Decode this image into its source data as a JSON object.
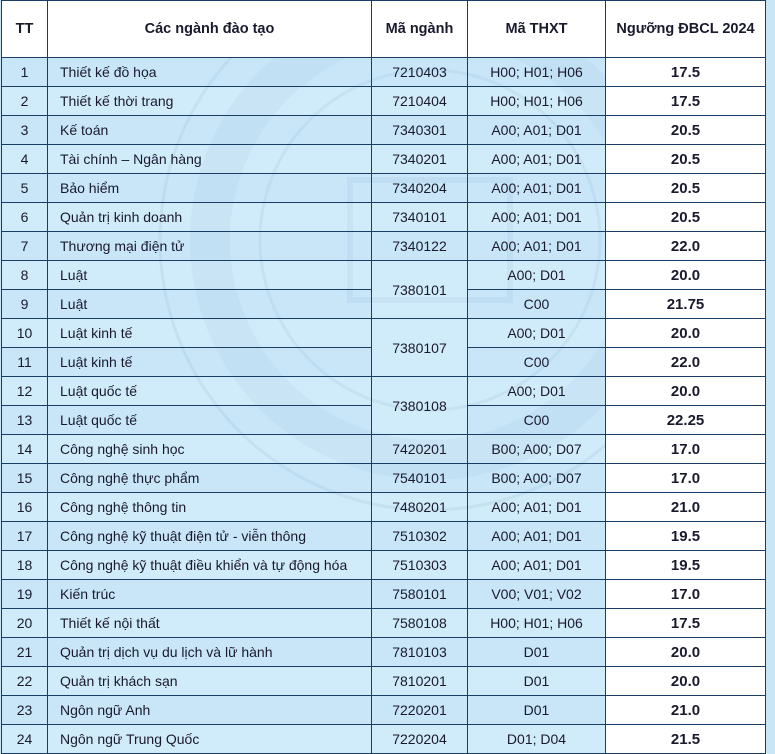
{
  "table": {
    "headers": [
      "TT",
      "Các ngành đào tạo",
      "Mã ngành",
      "Mã THXT",
      "Ngưỡng ĐBCL 2024"
    ],
    "rows": [
      {
        "tt": "1",
        "name": "Thiết kế đồ họa",
        "code": "7210403",
        "combo": "H00; H01; H06",
        "score": "17.5"
      },
      {
        "tt": "2",
        "name": "Thiết kế thời trang",
        "code": "7210404",
        "combo": "H00; H01; H06",
        "score": "17.5"
      },
      {
        "tt": "3",
        "name": "Kế toán",
        "code": "7340301",
        "combo": "A00; A01; D01",
        "score": "20.5"
      },
      {
        "tt": "4",
        "name": "Tài chính – Ngân hàng",
        "code": "7340201",
        "combo": "A00; A01; D01",
        "score": "20.5"
      },
      {
        "tt": "5",
        "name": "Bảo hiểm",
        "code": "7340204",
        "combo": "A00; A01; D01",
        "score": "20.5"
      },
      {
        "tt": "6",
        "name": "Quản trị kinh doanh",
        "code": "7340101",
        "combo": "A00; A01; D01",
        "score": "20.5"
      },
      {
        "tt": "7",
        "name": "Thương mại điện tử",
        "code": "7340122",
        "combo": "A00; A01; D01",
        "score": "22.0"
      },
      {
        "tt": "8",
        "name": "Luật",
        "code": "7380101",
        "combo": "A00; D01",
        "score": "20.0"
      },
      {
        "tt": "9",
        "name": "Luật",
        "code": "",
        "combo": "C00",
        "score": "21.75"
      },
      {
        "tt": "10",
        "name": "Luật kinh tế",
        "code": "7380107",
        "combo": "A00; D01",
        "score": "20.0"
      },
      {
        "tt": "11",
        "name": "Luật kinh tế",
        "code": "",
        "combo": "C00",
        "score": "22.0"
      },
      {
        "tt": "12",
        "name": "Luật quốc tế",
        "code": "7380108",
        "combo": "A00; D01",
        "score": "20.0"
      },
      {
        "tt": "13",
        "name": "Luật quốc tế",
        "code": "",
        "combo": "C00",
        "score": "22.25"
      },
      {
        "tt": "14",
        "name": "Công nghệ sinh học",
        "code": "7420201",
        "combo": "B00; A00; D07",
        "score": "17.0"
      },
      {
        "tt": "15",
        "name": "Công nghệ thực phẩm",
        "code": "7540101",
        "combo": "B00; A00; D07",
        "score": "17.0"
      },
      {
        "tt": "16",
        "name": "Công nghệ thông tin",
        "code": "7480201",
        "combo": "A00; A01; D01",
        "score": "21.0"
      },
      {
        "tt": "17",
        "name": "Công nghệ kỹ thuật điện tử - viễn thông",
        "code": "7510302",
        "combo": "A00; A01; D01",
        "score": "19.5"
      },
      {
        "tt": "18",
        "name": "Công nghệ kỹ thuật điều khiển và tự động hóa",
        "code": "7510303",
        "combo": "A00; A01; D01",
        "score": "19.5"
      },
      {
        "tt": "19",
        "name": "Kiến trúc",
        "code": "7580101",
        "combo": "V00; V01; V02",
        "score": "17.0"
      },
      {
        "tt": "20",
        "name": "Thiết kế nội thất",
        "code": "7580108",
        "combo": "H00; H01; H06",
        "score": "17.5"
      },
      {
        "tt": "21",
        "name": "Quản trị dịch vụ du lịch và lữ hành",
        "code": "7810103",
        "combo": "D01",
        "score": "20.0"
      },
      {
        "tt": "22",
        "name": "Quản trị khách sạn",
        "code": "7810201",
        "combo": "D01",
        "score": "20.0"
      },
      {
        "tt": "23",
        "name": "Ngôn ngữ Anh",
        "code": "7220201",
        "combo": "D01",
        "score": "21.0"
      },
      {
        "tt": "24",
        "name": "Ngôn ngữ Trung Quốc",
        "code": "7220204",
        "combo": "D01; D04",
        "score": "21.5"
      }
    ]
  },
  "colors": {
    "background": "#c9e6f7",
    "border": "#1a3d66",
    "header_bg": "#ffffff",
    "score_bg": "#ffffff"
  }
}
